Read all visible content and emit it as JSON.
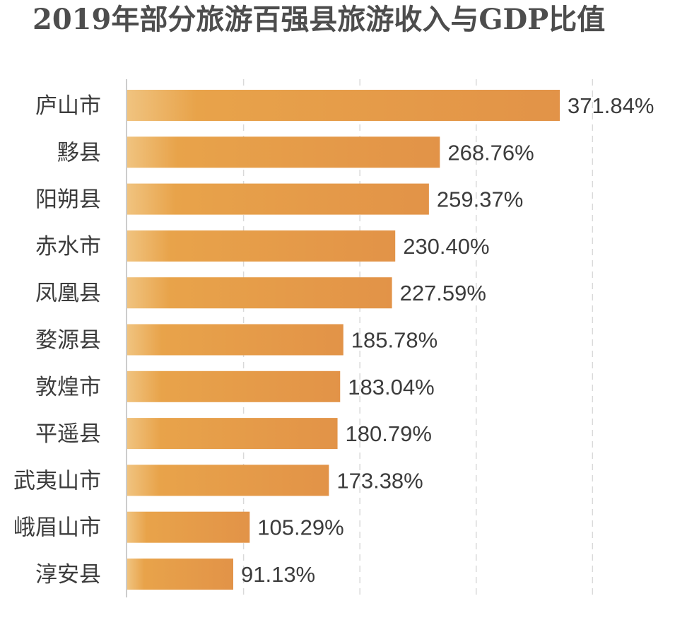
{
  "chart_data": {
    "type": "bar",
    "orientation": "horizontal",
    "title": "2019年部分旅游百强县旅游收入与GDP比值",
    "categories": [
      "庐山市",
      "黟县",
      "阳朔县",
      "赤水市",
      "凤凰县",
      "婺源县",
      "敦煌市",
      "平遥县",
      "武夷山市",
      "峨眉山市",
      "淳安县"
    ],
    "values": [
      371.84,
      268.76,
      259.37,
      230.4,
      227.59,
      185.78,
      183.04,
      180.79,
      173.38,
      105.29,
      91.13
    ],
    "value_labels": [
      "371.84%",
      "268.76%",
      "259.37%",
      "230.40%",
      "227.59%",
      "185.78%",
      "183.04%",
      "180.79%",
      "173.38%",
      "105.29%",
      "91.13%"
    ],
    "unit": "%",
    "xlim": [
      0,
      400
    ],
    "grid": "vertical dashed",
    "colors": {
      "bar_start": "#f0c37f",
      "bar_mid": "#e8a34a",
      "bar_end": "#e29348",
      "grid": "#d9d9d9",
      "axis": "#cccccc"
    }
  }
}
